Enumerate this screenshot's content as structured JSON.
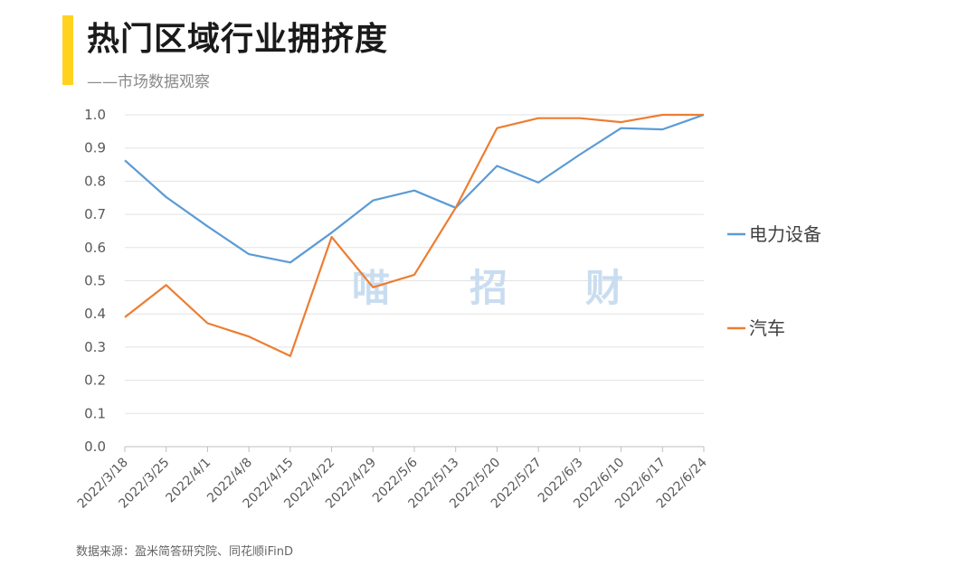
{
  "header": {
    "title": "热门区域行业拥挤度",
    "subtitle": "——市场数据观察",
    "accent_color": "#FFD21F"
  },
  "footer": {
    "source": "数据来源：盈米简答研究院、同花顺iFinD"
  },
  "watermark": {
    "chars": [
      "喵",
      "招",
      "财"
    ],
    "color": "#C9DDF0"
  },
  "chart_data": {
    "type": "line",
    "categories": [
      "2022/3/18",
      "2022/3/25",
      "2022/4/1",
      "2022/4/8",
      "2022/4/15",
      "2022/4/22",
      "2022/4/29",
      "2022/5/6",
      "2022/5/13",
      "2022/5/20",
      "2022/5/27",
      "2022/6/3",
      "2022/6/10",
      "2022/6/17",
      "2022/6/24"
    ],
    "series": [
      {
        "name": "电力设备",
        "color": "#5B9BD5",
        "values": [
          0.863,
          0.752,
          0.664,
          0.58,
          0.555,
          0.645,
          0.742,
          0.772,
          0.72,
          0.846,
          0.796,
          0.88,
          0.96,
          0.956,
          1.0
        ]
      },
      {
        "name": "汽车",
        "color": "#ED7D31",
        "values": [
          0.39,
          0.487,
          0.372,
          0.332,
          0.273,
          0.632,
          0.48,
          0.518,
          0.72,
          0.96,
          0.99,
          0.99,
          0.978,
          1.0,
          1.0
        ]
      }
    ],
    "yticks": [
      "0.0",
      "0.1",
      "0.2",
      "0.3",
      "0.4",
      "0.5",
      "0.6",
      "0.7",
      "0.8",
      "0.9",
      "1.0"
    ],
    "ylim": [
      0,
      1.0
    ],
    "grid": true,
    "legend": "right"
  }
}
